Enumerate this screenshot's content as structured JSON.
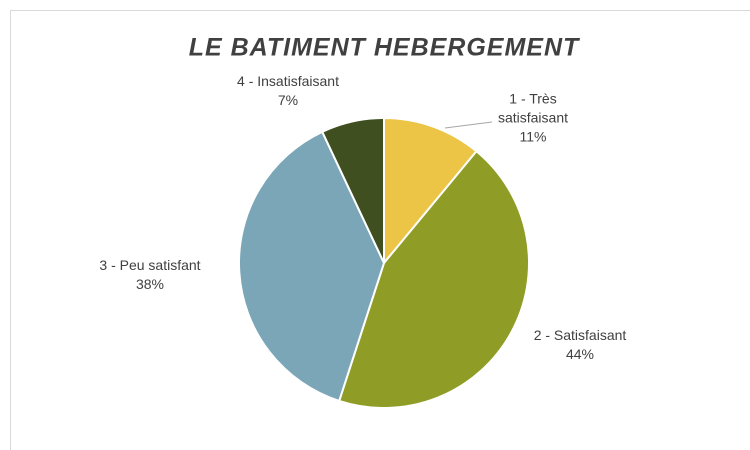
{
  "chart_data": {
    "type": "pie",
    "title": "LE BATIMENT HEBERGEMENT",
    "categories": [
      "1 - Très satisfaisant",
      "2 - Satisfaisant",
      "3 - Peu satisfant",
      "4 - Insatisfaisant"
    ],
    "values": [
      11,
      44,
      38,
      7
    ],
    "value_labels": [
      "11%",
      "44%",
      "38%",
      "7%"
    ],
    "colors": [
      "#ecc546",
      "#8f9c25",
      "#7ba6b8",
      "#3f4f1f"
    ]
  }
}
